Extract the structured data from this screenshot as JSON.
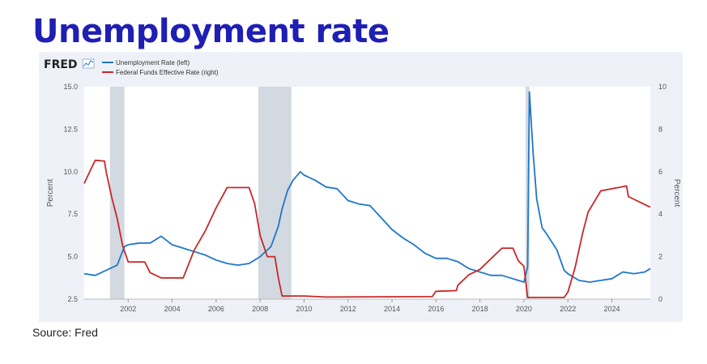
{
  "slide": {
    "title": "Unemployment rate",
    "source": "Source: Fred"
  },
  "chart_data": {
    "type": "line",
    "logo": "FRED",
    "colors": {
      "unemployment": "#1f77c8",
      "fedfunds": "#c62828",
      "recession": "#d3d9e0"
    },
    "x_axis": {
      "range": [
        2000.0,
        2025.75
      ],
      "ticks": [
        "2002",
        "2004",
        "2006",
        "2008",
        "2010",
        "2012",
        "2014",
        "2016",
        "2018",
        "2020",
        "2022",
        "2024"
      ]
    },
    "y_left": {
      "label": "Percent",
      "range": [
        2.5,
        15.0
      ],
      "ticks": [
        "2.5",
        "5.0",
        "7.5",
        "10.0",
        "12.5",
        "15.0"
      ]
    },
    "y_right": {
      "label": "Percent",
      "range": [
        0,
        10
      ],
      "ticks": [
        "0",
        "2",
        "4",
        "6",
        "8",
        "10"
      ]
    },
    "grid": false,
    "legend_position": "top-left",
    "recessions": [
      [
        2001.17,
        2001.83
      ],
      [
        2007.92,
        2009.42
      ],
      [
        2020.08,
        2020.25
      ]
    ],
    "series": [
      {
        "name": "Unemployment Rate (left)",
        "axis": "left",
        "points": [
          [
            2000.0,
            4.0
          ],
          [
            2000.5,
            3.9
          ],
          [
            2001.0,
            4.2
          ],
          [
            2001.5,
            4.5
          ],
          [
            2001.83,
            5.6
          ],
          [
            2002.0,
            5.7
          ],
          [
            2002.5,
            5.8
          ],
          [
            2003.0,
            5.8
          ],
          [
            2003.5,
            6.2
          ],
          [
            2004.0,
            5.7
          ],
          [
            2004.5,
            5.5
          ],
          [
            2005.0,
            5.3
          ],
          [
            2005.5,
            5.1
          ],
          [
            2006.0,
            4.8
          ],
          [
            2006.5,
            4.6
          ],
          [
            2007.0,
            4.5
          ],
          [
            2007.5,
            4.6
          ],
          [
            2008.0,
            5.0
          ],
          [
            2008.5,
            5.6
          ],
          [
            2008.83,
            6.8
          ],
          [
            2009.0,
            7.8
          ],
          [
            2009.25,
            8.9
          ],
          [
            2009.5,
            9.5
          ],
          [
            2009.83,
            10.0
          ],
          [
            2010.0,
            9.8
          ],
          [
            2010.5,
            9.5
          ],
          [
            2011.0,
            9.1
          ],
          [
            2011.5,
            9.0
          ],
          [
            2012.0,
            8.3
          ],
          [
            2012.5,
            8.1
          ],
          [
            2013.0,
            8.0
          ],
          [
            2013.5,
            7.3
          ],
          [
            2014.0,
            6.6
          ],
          [
            2014.5,
            6.1
          ],
          [
            2015.0,
            5.7
          ],
          [
            2015.5,
            5.2
          ],
          [
            2016.0,
            4.9
          ],
          [
            2016.5,
            4.9
          ],
          [
            2017.0,
            4.7
          ],
          [
            2017.5,
            4.3
          ],
          [
            2018.0,
            4.1
          ],
          [
            2018.5,
            3.9
          ],
          [
            2019.0,
            3.9
          ],
          [
            2019.5,
            3.7
          ],
          [
            2020.0,
            3.5
          ],
          [
            2020.17,
            4.4
          ],
          [
            2020.25,
            14.7
          ],
          [
            2020.42,
            11.1
          ],
          [
            2020.58,
            8.4
          ],
          [
            2020.83,
            6.7
          ],
          [
            2021.0,
            6.4
          ],
          [
            2021.5,
            5.4
          ],
          [
            2021.83,
            4.2
          ],
          [
            2022.0,
            4.0
          ],
          [
            2022.5,
            3.6
          ],
          [
            2023.0,
            3.5
          ],
          [
            2023.5,
            3.6
          ],
          [
            2024.0,
            3.7
          ],
          [
            2024.5,
            4.1
          ],
          [
            2025.0,
            4.0
          ],
          [
            2025.5,
            4.1
          ],
          [
            2025.75,
            4.3
          ]
        ]
      },
      {
        "name": "Federal Funds Effective Rate (right)",
        "axis": "right",
        "points": [
          [
            2000.0,
            5.45
          ],
          [
            2000.25,
            6.0
          ],
          [
            2000.5,
            6.54
          ],
          [
            2000.92,
            6.5
          ],
          [
            2001.0,
            6.0
          ],
          [
            2001.25,
            4.8
          ],
          [
            2001.5,
            3.8
          ],
          [
            2001.75,
            2.5
          ],
          [
            2002.0,
            1.75
          ],
          [
            2002.75,
            1.75
          ],
          [
            2003.0,
            1.25
          ],
          [
            2003.5,
            1.0
          ],
          [
            2004.5,
            1.0
          ],
          [
            2005.0,
            2.3
          ],
          [
            2005.5,
            3.2
          ],
          [
            2006.0,
            4.3
          ],
          [
            2006.5,
            5.25
          ],
          [
            2007.5,
            5.25
          ],
          [
            2007.75,
            4.5
          ],
          [
            2008.0,
            3.0
          ],
          [
            2008.33,
            2.0
          ],
          [
            2008.67,
            2.0
          ],
          [
            2008.83,
            1.0
          ],
          [
            2009.0,
            0.15
          ],
          [
            2010.0,
            0.15
          ],
          [
            2011.0,
            0.1
          ],
          [
            2015.83,
            0.12
          ],
          [
            2016.0,
            0.37
          ],
          [
            2016.92,
            0.4
          ],
          [
            2017.0,
            0.66
          ],
          [
            2017.5,
            1.15
          ],
          [
            2018.0,
            1.4
          ],
          [
            2018.5,
            1.9
          ],
          [
            2019.0,
            2.4
          ],
          [
            2019.5,
            2.4
          ],
          [
            2019.75,
            1.8
          ],
          [
            2020.0,
            1.55
          ],
          [
            2020.17,
            0.08
          ],
          [
            2021.83,
            0.08
          ],
          [
            2022.0,
            0.33
          ],
          [
            2022.33,
            1.5
          ],
          [
            2022.67,
            3.1
          ],
          [
            2022.92,
            4.1
          ],
          [
            2023.5,
            5.1
          ],
          [
            2024.67,
            5.33
          ],
          [
            2024.75,
            4.83
          ],
          [
            2025.75,
            4.33
          ]
        ]
      }
    ]
  }
}
